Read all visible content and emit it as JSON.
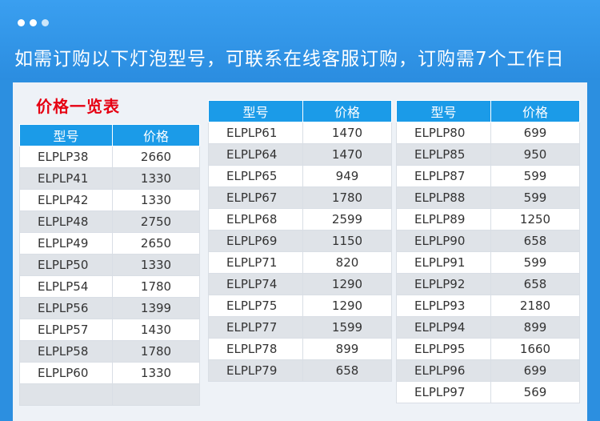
{
  "headline": "如需订购以下灯泡型号，可联系在线客服订购，订购需7个工作日",
  "price_title": "价格一览表",
  "headers": {
    "model": "型号",
    "price": "价格"
  },
  "colors": {
    "banner": "#2b8de0",
    "header": "#1b9be8",
    "title_red": "#e60012"
  },
  "tables": [
    {
      "rows": [
        {
          "model": "ELPLP38",
          "price": "2660"
        },
        {
          "model": "ELPLP41",
          "price": "1330"
        },
        {
          "model": "ELPLP42",
          "price": "1330"
        },
        {
          "model": "ELPLP48",
          "price": "2750"
        },
        {
          "model": "ELPLP49",
          "price": "2650"
        },
        {
          "model": "ELPLP50",
          "price": "1330"
        },
        {
          "model": "ELPLP54",
          "price": "1780"
        },
        {
          "model": "ELPLP56",
          "price": "1399"
        },
        {
          "model": "ELPLP57",
          "price": "1430"
        },
        {
          "model": "ELPLP58",
          "price": "1780"
        },
        {
          "model": "ELPLP60",
          "price": "1330"
        },
        {
          "model": "",
          "price": ""
        }
      ]
    },
    {
      "rows": [
        {
          "model": "ELPLP61",
          "price": "1470"
        },
        {
          "model": "ELPLP64",
          "price": "1470"
        },
        {
          "model": "ELPLP65",
          "price": "949"
        },
        {
          "model": "ELPLP67",
          "price": "1780"
        },
        {
          "model": "ELPLP68",
          "price": "2599"
        },
        {
          "model": "ELPLP69",
          "price": "1150"
        },
        {
          "model": "ELPLP71",
          "price": "820"
        },
        {
          "model": "ELPLP74",
          "price": "1290"
        },
        {
          "model": "ELPLP75",
          "price": "1290"
        },
        {
          "model": "ELPLP77",
          "price": "1599"
        },
        {
          "model": "ELPLP78",
          "price": "899"
        },
        {
          "model": "ELPLP79",
          "price": "658"
        }
      ]
    },
    {
      "rows": [
        {
          "model": "ELPLP80",
          "price": "699"
        },
        {
          "model": "ELPLP85",
          "price": "950"
        },
        {
          "model": "ELPLP87",
          "price": "599"
        },
        {
          "model": "ELPLP88",
          "price": "599"
        },
        {
          "model": "ELPLP89",
          "price": "1250"
        },
        {
          "model": "ELPLP90",
          "price": "658"
        },
        {
          "model": "ELPLP91",
          "price": "599"
        },
        {
          "model": "ELPLP92",
          "price": "658"
        },
        {
          "model": "ELPLP93",
          "price": "2180"
        },
        {
          "model": "ELPLP94",
          "price": "899"
        },
        {
          "model": "ELPLP95",
          "price": "1660"
        },
        {
          "model": "ELPLP96",
          "price": "699"
        },
        {
          "model": "ELPLP97",
          "price": "569"
        }
      ]
    }
  ]
}
